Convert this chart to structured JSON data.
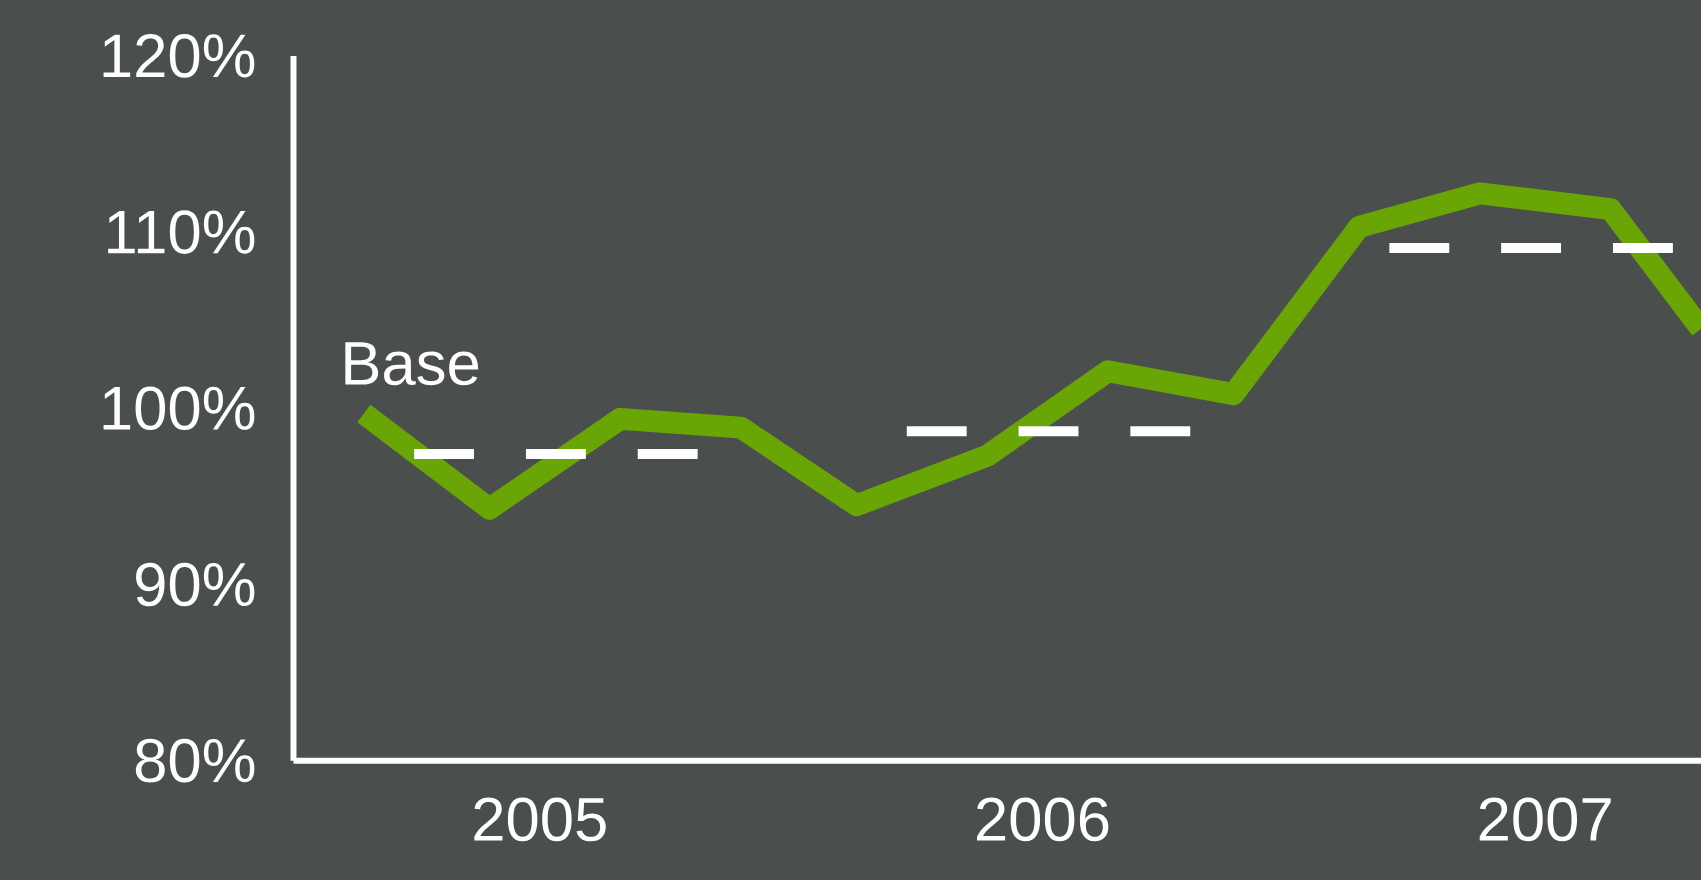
{
  "chart_data": {
    "type": "line",
    "marker": "none",
    "xlim": [
      2004.51,
      2007.31
    ],
    "xticks": [
      2005,
      2006,
      2007
    ],
    "ylim": [
      80,
      120
    ],
    "yticks": [
      {
        "value": 80,
        "label": "80%"
      },
      {
        "value": 90,
        "label": "90%"
      },
      {
        "value": 100,
        "label": "100%"
      },
      {
        "value": 110,
        "label": "110%"
      },
      {
        "value": 120,
        "label": "120%"
      }
    ],
    "series": [
      {
        "color": "#6aa506",
        "line_style": "solid",
        "x": [
          2004.65,
          2004.9,
          2005.16,
          2005.4,
          2005.63,
          2005.89,
          2006.13,
          2006.38,
          2006.63,
          2006.87,
          2007.13,
          2007.31
        ],
        "values": [
          99.7,
          94.3,
          99.4,
          98.9,
          94.5,
          97.3,
          102.1,
          100.8,
          110.3,
          112.2,
          111.3,
          104.5
        ]
      },
      {
        "color": "#ffffff",
        "line_style": "dashed",
        "x": [
          2004.75,
          2005.32,
          2005.52,
          2005.73,
          2006.3,
          2006.5,
          2006.69,
          2007.31
        ],
        "values": [
          97.4,
          97.4,
          null,
          98.7,
          98.7,
          null,
          109.1,
          109.1
        ]
      }
    ],
    "annotations": [
      {
        "text": "Base",
        "x": 2004.65,
        "y": 99.7
      }
    ]
  }
}
